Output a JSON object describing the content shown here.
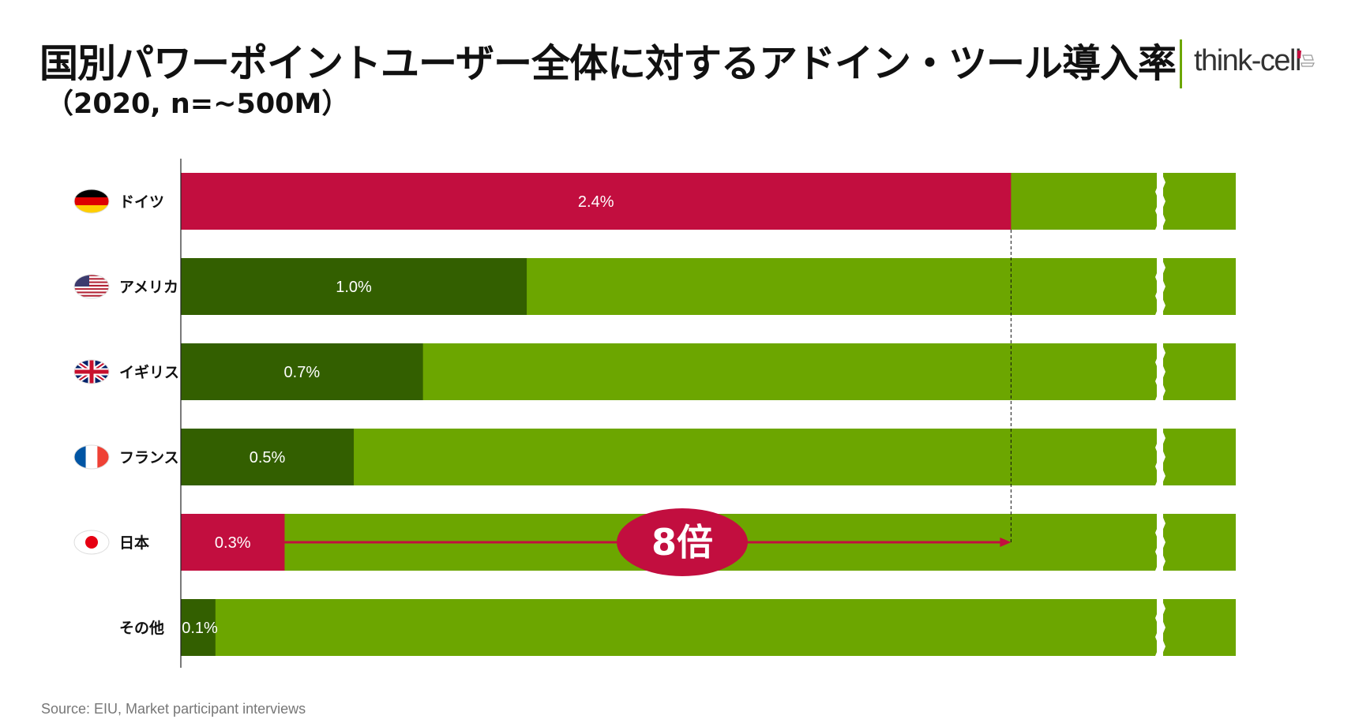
{
  "header": {
    "title": "国別パワーポイントユーザー全体に対するアドイン・ツール導入率",
    "subtitle": "（2020, n=~500M）",
    "brand": "think-cell"
  },
  "footer": {
    "source": "Source: EIU, Market participant interviews"
  },
  "colors": {
    "highlight": "#c20e3f",
    "dark_green": "#335f00",
    "light_green": "#6ca600",
    "axis": "#222222",
    "brand_green": "#6ca600"
  },
  "chart_data": {
    "type": "bar",
    "orientation": "horizontal",
    "stacked_to_100": true,
    "axis_break": true,
    "categories": [
      "ドイツ",
      "アメリカ",
      "イギリス",
      "フランス",
      "日本",
      "その他"
    ],
    "flag_icons": [
      "germany-flag-icon",
      "usa-flag-icon",
      "uk-flag-icon",
      "france-flag-icon",
      "japan-flag-icon",
      ""
    ],
    "series": [
      {
        "name": "",
        "values": [
          2.4,
          1.0,
          0.7,
          0.5,
          0.3,
          0.1
        ]
      }
    ],
    "value_labels": [
      "2.4%",
      "1.0%",
      "0.7%",
      "0.5%",
      "0.3%",
      "0.1%"
    ],
    "highlighted": [
      "ドイツ",
      "日本"
    ],
    "xlim": [
      0,
      2.8
    ],
    "annotation": {
      "text": "8倍",
      "from": "日本",
      "to": "ドイツ"
    },
    "title": "",
    "xlabel": "",
    "ylabel": ""
  }
}
